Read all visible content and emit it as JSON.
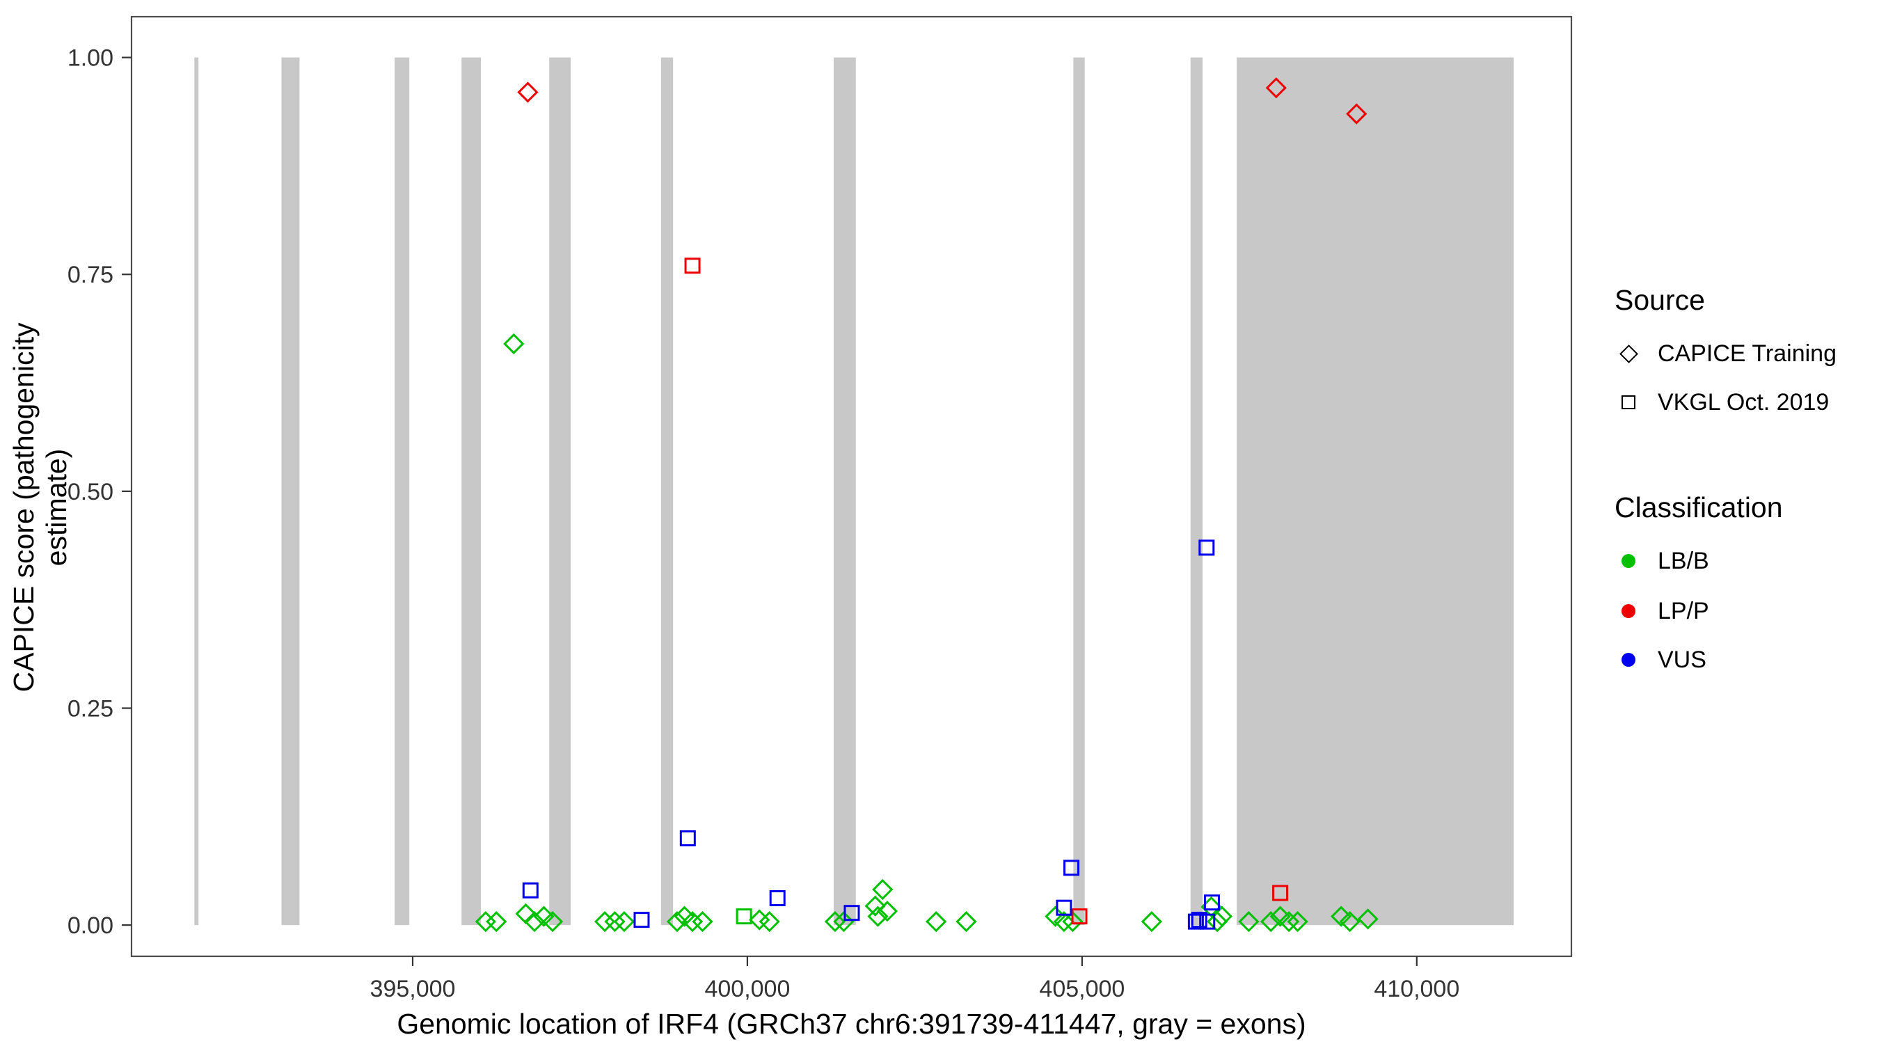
{
  "chart_data": {
    "type": "scatter",
    "title": "",
    "xlabel": "Genomic location of IRF4 (GRCh37 chr6:391739-411447, gray = exons)",
    "ylabel": "CAPICE score (pathogenicity estimate)",
    "xlim": [
      390800,
      412310
    ],
    "ylim": [
      -0.036,
      1.047
    ],
    "x_ticks": [
      395000,
      400000,
      405000,
      410000
    ],
    "x_tick_labels": [
      "395,000",
      "400,000",
      "405,000",
      "410,000"
    ],
    "y_ticks": [
      0,
      0.25,
      0.5,
      0.75,
      1.0
    ],
    "y_tick_labels": [
      "0.00",
      "0.25",
      "0.50",
      "0.75",
      "1.00"
    ],
    "grid": false,
    "legend_position": "right",
    "exon_color": "#C8C8C8",
    "exons": [
      [
        391739,
        391800
      ],
      [
        393040,
        393310
      ],
      [
        394730,
        394950
      ],
      [
        395730,
        396020
      ],
      [
        397040,
        397360
      ],
      [
        398710,
        398890
      ],
      [
        401290,
        401620
      ],
      [
        404870,
        405040
      ],
      [
        406620,
        406800
      ],
      [
        407310,
        411447
      ]
    ],
    "series": [
      {
        "name": "CAPICE Training / LP-P",
        "source": "CAPICE Training",
        "classification": "LP/P",
        "shape": "diamond",
        "color": "#EE0000",
        "points": [
          [
            396720,
            0.96
          ],
          [
            407900,
            0.965
          ],
          [
            409100,
            0.935
          ]
        ]
      },
      {
        "name": "CAPICE Training / LB-B",
        "source": "CAPICE Training",
        "classification": "LB/B",
        "shape": "diamond",
        "color": "#00C000",
        "points": [
          [
            396510,
            0.67
          ],
          [
            396090,
            0.004
          ],
          [
            396250,
            0.004
          ],
          [
            396690,
            0.013
          ],
          [
            396820,
            0.004
          ],
          [
            396960,
            0.01
          ],
          [
            397090,
            0.004
          ],
          [
            397870,
            0.004
          ],
          [
            398020,
            0.004
          ],
          [
            398160,
            0.004
          ],
          [
            398950,
            0.004
          ],
          [
            399060,
            0.01
          ],
          [
            399180,
            0.004
          ],
          [
            399330,
            0.004
          ],
          [
            400180,
            0.006
          ],
          [
            400330,
            0.004
          ],
          [
            401310,
            0.004
          ],
          [
            401440,
            0.004
          ],
          [
            401910,
            0.022
          ],
          [
            401950,
            0.01
          ],
          [
            402020,
            0.041
          ],
          [
            402090,
            0.016
          ],
          [
            402820,
            0.004
          ],
          [
            403270,
            0.004
          ],
          [
            404600,
            0.01
          ],
          [
            404730,
            0.004
          ],
          [
            404860,
            0.004
          ],
          [
            406040,
            0.004
          ],
          [
            406930,
            0.021
          ],
          [
            407020,
            0.004
          ],
          [
            407090,
            0.01
          ],
          [
            407490,
            0.004
          ],
          [
            407820,
            0.004
          ],
          [
            407960,
            0.01
          ],
          [
            408090,
            0.004
          ],
          [
            408220,
            0.004
          ],
          [
            408870,
            0.01
          ],
          [
            409000,
            0.004
          ],
          [
            409270,
            0.007
          ]
        ]
      },
      {
        "name": "VKGL / LP-P",
        "source": "VKGL Oct. 2019",
        "classification": "LP/P",
        "shape": "square",
        "color": "#EE0000",
        "points": [
          [
            399180,
            0.76
          ],
          [
            404960,
            0.01
          ],
          [
            407960,
            0.037
          ]
        ]
      },
      {
        "name": "VKGL / VUS",
        "source": "VKGL Oct. 2019",
        "classification": "VUS",
        "shape": "square",
        "color": "#0000EE",
        "points": [
          [
            396760,
            0.04
          ],
          [
            398420,
            0.006
          ],
          [
            399110,
            0.1
          ],
          [
            400450,
            0.031
          ],
          [
            401560,
            0.014
          ],
          [
            404730,
            0.02
          ],
          [
            404840,
            0.066
          ],
          [
            406700,
            0.004
          ],
          [
            406750,
            0.006
          ],
          [
            406860,
            0.435
          ],
          [
            406870,
            0.004
          ],
          [
            406940,
            0.026
          ]
        ]
      },
      {
        "name": "VKGL / LB-B",
        "source": "VKGL Oct. 2019",
        "classification": "LB/B",
        "shape": "square",
        "color": "#00C000",
        "points": [
          [
            399950,
            0.01
          ]
        ]
      }
    ]
  },
  "legend": {
    "source_title": "Source",
    "source_items": [
      {
        "label": "CAPICE Training",
        "shape": "diamond"
      },
      {
        "label": "VKGL Oct. 2019",
        "shape": "square"
      }
    ],
    "classification_title": "Classification",
    "classification_items": [
      {
        "label": "LB/B",
        "color": "#00C000"
      },
      {
        "label": "LP/P",
        "color": "#EE0000"
      },
      {
        "label": "VUS",
        "color": "#0000EE"
      }
    ]
  }
}
